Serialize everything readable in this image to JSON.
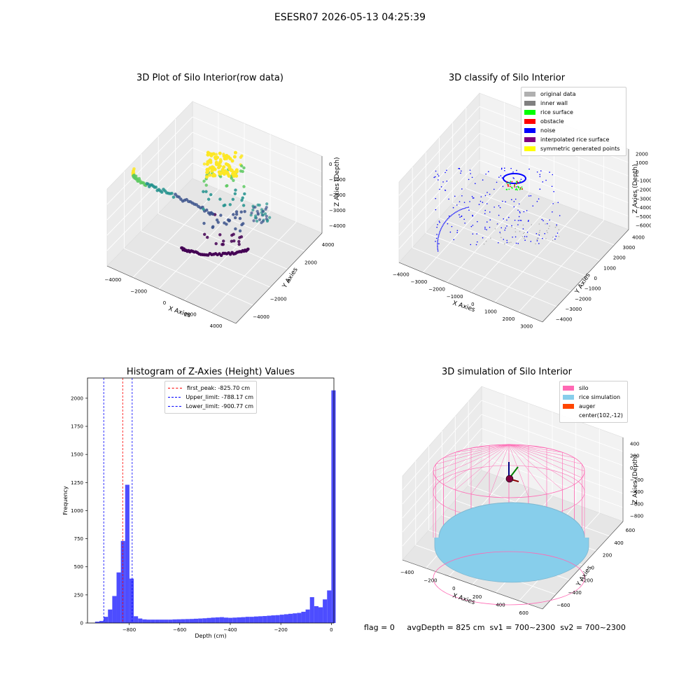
{
  "suptitle": "ESESR07 2026-05-13 04:25:39",
  "status_line": "flag = 0     avgDepth = 825 cm  sv1 = 700~2300  sv2 = 700~2300",
  "colors": {
    "viridis": [
      "#440154",
      "#3b528b",
      "#21918c",
      "#5ec962",
      "#fde725"
    ],
    "original": "#b0b0b0",
    "inner_wall": "#808080",
    "rice_surface": "#00ff00",
    "obstacle": "#ff0000",
    "noise": "#0000ff",
    "interp": "#800080",
    "sym": "#ffff00",
    "hist_bar": "#4d4dff",
    "silo": "#ff69b4",
    "rice_sim": "#87ceeb",
    "auger": "#ff4500"
  },
  "chart_data": [
    {
      "type": "scatter",
      "projection": "3d",
      "title": "3D Plot of Silo Interior(row data)",
      "xlabel": "X Axies",
      "ylabel": "Y Axies",
      "zlabel": "Z Axies (Depth)",
      "xticks": [
        "−4000",
        "−2000",
        "0",
        "2000",
        "4000"
      ],
      "yticks": [
        "−4000",
        "−2000",
        "0",
        "2000",
        "4000"
      ],
      "zticks": [
        "0",
        "−1000",
        "−2000",
        "−3000",
        "−4000"
      ],
      "xlim": [
        -4500,
        4500
      ],
      "ylim": [
        -4500,
        4500
      ],
      "zlim": [
        -4600,
        200
      ],
      "colormap": "viridis by depth",
      "grid": true
    },
    {
      "type": "scatter",
      "projection": "3d",
      "title": "3D classify of Silo Interior",
      "xlabel": "X Axies",
      "ylabel": "Y Axies",
      "zlabel": "Z Axies (Depth)",
      "xticks": [
        "−4000",
        "−3000",
        "−2000",
        "−1000",
        "0",
        "1000",
        "2000",
        "3000"
      ],
      "yticks": [
        "−4000",
        "−3000",
        "−2000",
        "−1000",
        "0",
        "1000",
        "2000",
        "3000",
        "4000"
      ],
      "zticks": [
        "2000",
        "1000",
        "0",
        "−1000",
        "−2000",
        "−3000",
        "−4000",
        "−5000",
        "−6000"
      ],
      "xlim": [
        -4500,
        3500
      ],
      "ylim": [
        -4500,
        4500
      ],
      "zlim": [
        -6500,
        2000
      ],
      "legend_position": "top-right",
      "legend": [
        "original data",
        "inner wall",
        "rice surface",
        "obstacle",
        "noise",
        "interpolated rice surface",
        "symmetric generated points"
      ],
      "grid": true
    },
    {
      "type": "bar",
      "title": "Histogram of Z-Axies (Height) Values",
      "xlabel": "Depth (cm)",
      "ylabel": "Frequency",
      "xticks": [
        "−800",
        "−600",
        "−400",
        "−200",
        "0"
      ],
      "yticks": [
        "0",
        "250",
        "500",
        "750",
        "1000",
        "1250",
        "1500",
        "1750",
        "2000"
      ],
      "xlim": [
        -965,
        10
      ],
      "ylim": [
        0,
        2180
      ],
      "bin_width": 17,
      "bin_start": -935,
      "values": [
        12,
        18,
        55,
        120,
        240,
        450,
        730,
        1230,
        395,
        60,
        40,
        32,
        30,
        30,
        30,
        30,
        30,
        30,
        32,
        33,
        34,
        35,
        36,
        38,
        40,
        42,
        45,
        48,
        50,
        52,
        48,
        46,
        48,
        50,
        52,
        55,
        55,
        58,
        60,
        62,
        65,
        68,
        70,
        74,
        78,
        82,
        86,
        90,
        100,
        120,
        230,
        150,
        140,
        210,
        290,
        2070
      ],
      "lines": [
        {
          "label": "first_peak: -825.70 cm",
          "x": -825.7,
          "color": "#ff0000"
        },
        {
          "label": "Upper_limit: -788.17 cm",
          "x": -788.17,
          "color": "#0000ff"
        },
        {
          "label": "Lower_limit: -900.77 cm",
          "x": -900.77,
          "color": "#0000ff"
        }
      ],
      "legend_position": "top-center",
      "grid": false
    },
    {
      "type": "scatter",
      "projection": "3d",
      "title": "3D simulation of Silo Interior",
      "xlabel": "X Axies",
      "ylabel": "Y Axies",
      "zlabel": "Z Axies (Depth)",
      "xticks": [
        "−400",
        "−200",
        "0",
        "200",
        "400",
        "600"
      ],
      "yticks": [
        "−600",
        "−400",
        "−200",
        "0",
        "200",
        "400",
        "600"
      ],
      "zticks": [
        "400",
        "200",
        "0",
        "−200",
        "−400",
        "−600",
        "−800"
      ],
      "xlim": [
        -600,
        700
      ],
      "ylim": [
        -700,
        700
      ],
      "zlim": [
        -900,
        450
      ],
      "legend_position": "top-right",
      "legend": [
        "silo",
        "rice simulation",
        "auger",
        "center(102,-12)"
      ],
      "center": [
        102,
        -12
      ],
      "grid": true
    }
  ]
}
